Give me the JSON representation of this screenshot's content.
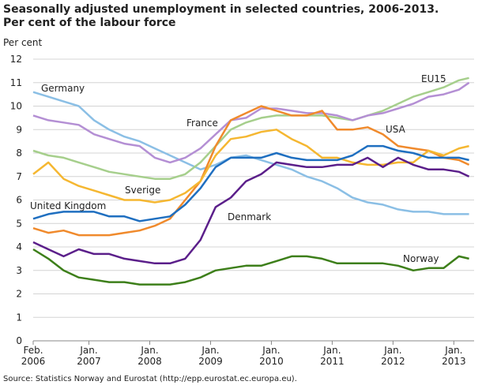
{
  "chart_data": {
    "type": "line",
    "title": "Seasonally adjusted unemployment in selected countries, 2006-2013.",
    "subtitle": "Per cent of the labour force",
    "y_label": "Per cent",
    "source": "Source: Statistics Norway and Eurostat (http://epp.eurostat.ec.europa.eu).",
    "x": [
      "2006-02",
      "2006-05",
      "2006-08",
      "2006-11",
      "2007-02",
      "2007-05",
      "2007-08",
      "2007-11",
      "2008-02",
      "2008-05",
      "2008-08",
      "2008-11",
      "2009-02",
      "2009-05",
      "2009-08",
      "2009-11",
      "2010-02",
      "2010-05",
      "2010-08",
      "2010-11",
      "2011-02",
      "2011-05",
      "2011-08",
      "2011-11",
      "2012-02",
      "2012-05",
      "2012-08",
      "2012-11",
      "2013-02",
      "2013-04"
    ],
    "xlim": [
      "2006-02",
      "2013-05"
    ],
    "xticks": [
      {
        "value": "2006-02",
        "label": "Feb. 2006"
      },
      {
        "value": "2007-01",
        "label": "Jan. 2007"
      },
      {
        "value": "2008-01",
        "label": "Jan. 2008"
      },
      {
        "value": "2009-01",
        "label": "Jan. 2009"
      },
      {
        "value": "2010-01",
        "label": "Jan. 2010"
      },
      {
        "value": "2011-01",
        "label": "Jan. 2011"
      },
      {
        "value": "2012-01",
        "label": "Jan. 2012"
      },
      {
        "value": "2013-01",
        "label": "Jan. 2013"
      }
    ],
    "ylim": [
      0,
      12
    ],
    "yticks": [
      0,
      1,
      2,
      3,
      4,
      5,
      6,
      7,
      8,
      9,
      10,
      11,
      12
    ],
    "grid": true,
    "series": [
      {
        "name": "Germany",
        "color": "#8bbfe5",
        "values": [
          10.6,
          10.4,
          10.2,
          10.0,
          9.4,
          9.0,
          8.7,
          8.5,
          8.2,
          7.9,
          7.6,
          7.3,
          7.5,
          7.8,
          7.9,
          7.7,
          7.5,
          7.3,
          7.0,
          6.8,
          6.5,
          6.1,
          5.9,
          5.8,
          5.6,
          5.5,
          5.5,
          5.4,
          5.4,
          5.4
        ]
      },
      {
        "name": "EU15",
        "color": "#a6cf8c",
        "values": [
          8.1,
          7.9,
          7.8,
          7.6,
          7.4,
          7.2,
          7.1,
          7.0,
          6.9,
          6.9,
          7.1,
          7.6,
          8.3,
          9.0,
          9.3,
          9.5,
          9.6,
          9.6,
          9.6,
          9.6,
          9.5,
          9.4,
          9.6,
          9.8,
          10.1,
          10.4,
          10.6,
          10.8,
          11.1,
          11.2
        ]
      },
      {
        "name": "France",
        "color": "#b48fd4",
        "values": [
          9.6,
          9.4,
          9.3,
          9.2,
          8.8,
          8.6,
          8.4,
          8.3,
          7.8,
          7.6,
          7.8,
          8.2,
          8.8,
          9.4,
          9.5,
          9.9,
          9.9,
          9.8,
          9.7,
          9.7,
          9.6,
          9.4,
          9.6,
          9.7,
          9.9,
          10.1,
          10.4,
          10.5,
          10.7,
          11.0
        ]
      },
      {
        "name": "USA",
        "color": "#f08a2c",
        "values": [
          4.8,
          4.6,
          4.7,
          4.5,
          4.5,
          4.5,
          4.6,
          4.7,
          4.9,
          5.2,
          6.0,
          6.8,
          8.3,
          9.4,
          9.7,
          10.0,
          9.8,
          9.6,
          9.6,
          9.8,
          9.0,
          9.0,
          9.1,
          8.8,
          8.3,
          8.2,
          8.1,
          7.8,
          7.7,
          7.5
        ]
      },
      {
        "name": "Sverige",
        "color": "#f5b731",
        "values": [
          7.1,
          7.6,
          6.9,
          6.6,
          6.4,
          6.2,
          6.0,
          6.0,
          5.9,
          6.0,
          6.3,
          6.8,
          7.9,
          8.6,
          8.7,
          8.9,
          9.0,
          8.6,
          8.3,
          7.8,
          7.8,
          7.6,
          7.5,
          7.5,
          7.6,
          7.6,
          8.1,
          7.9,
          8.2,
          8.3
        ]
      },
      {
        "name": "United Kingdom",
        "color": "#1f6fc0",
        "values": [
          5.2,
          5.4,
          5.5,
          5.5,
          5.5,
          5.3,
          5.3,
          5.1,
          5.2,
          5.3,
          5.8,
          6.5,
          7.4,
          7.8,
          7.8,
          7.8,
          8.0,
          7.8,
          7.7,
          7.7,
          7.7,
          7.9,
          8.3,
          8.3,
          8.1,
          8.0,
          7.8,
          7.8,
          7.8,
          7.7
        ]
      },
      {
        "name": "Denmark",
        "color": "#5b1f8a",
        "values": [
          4.2,
          3.9,
          3.6,
          3.9,
          3.7,
          3.7,
          3.5,
          3.4,
          3.3,
          3.3,
          3.5,
          4.3,
          5.7,
          6.1,
          6.8,
          7.1,
          7.6,
          7.5,
          7.4,
          7.4,
          7.5,
          7.5,
          7.8,
          7.4,
          7.8,
          7.5,
          7.3,
          7.3,
          7.2,
          7.0
        ]
      },
      {
        "name": "Norway",
        "color": "#3d7f1a",
        "values": [
          3.9,
          3.5,
          3.0,
          2.7,
          2.6,
          2.5,
          2.5,
          2.4,
          2.4,
          2.4,
          2.5,
          2.7,
          3.0,
          3.1,
          3.2,
          3.2,
          3.4,
          3.6,
          3.6,
          3.5,
          3.3,
          3.3,
          3.3,
          3.3,
          3.2,
          3.0,
          3.1,
          3.1,
          3.6,
          3.5
        ]
      }
    ]
  }
}
